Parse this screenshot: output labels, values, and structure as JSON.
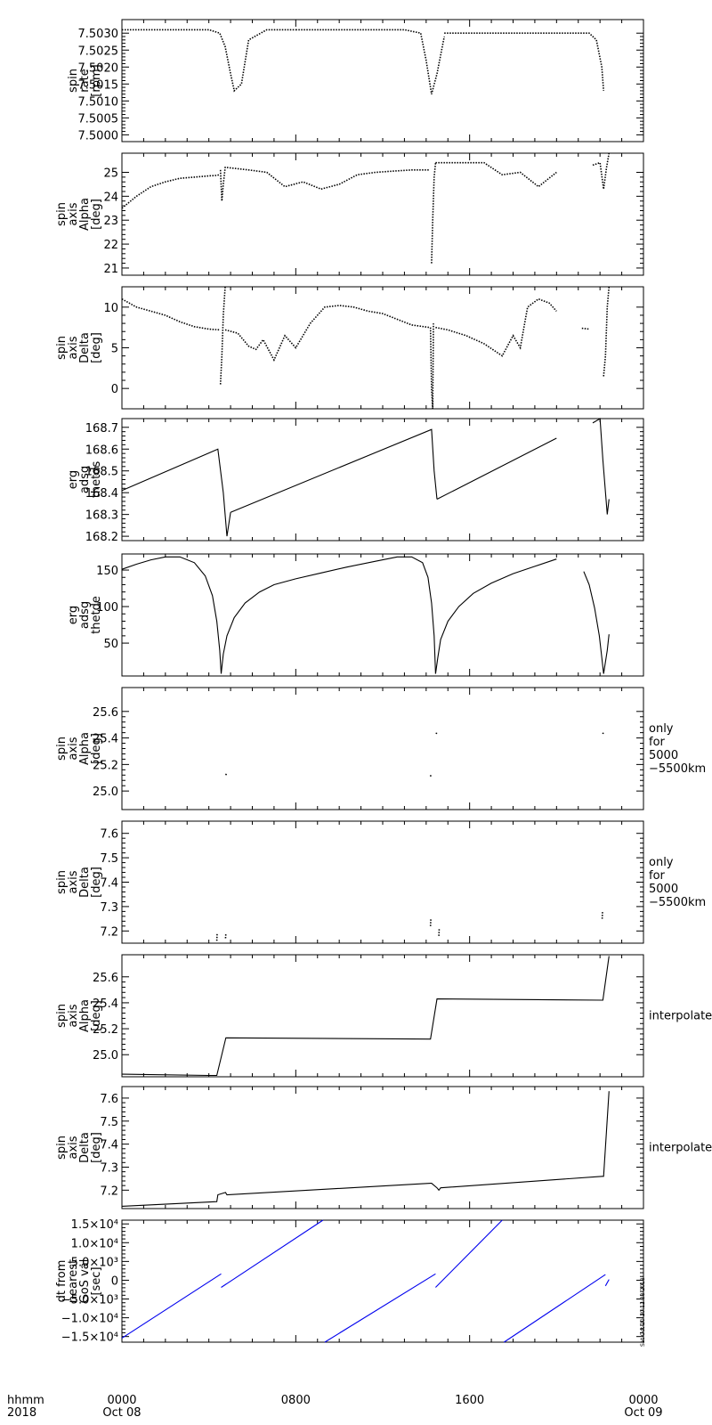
{
  "chart_data": [
    {
      "type": "scatter",
      "ylabel_lines": [
        "spin",
        "rate",
        "[rpm]"
      ],
      "ylim": [
        7.4998,
        7.5034
      ],
      "yticks": [
        7.5,
        7.5005,
        7.501,
        7.5015,
        7.502,
        7.5025,
        7.503
      ],
      "ytick_labels": [
        "7.5000",
        "7.5005",
        "7.5010",
        "7.5015",
        "7.5020",
        "7.5025",
        "7.5030"
      ],
      "side_label_lines": [],
      "color": "#000000",
      "segments": [
        {
          "x": [
            0,
            60,
            120,
            180,
            240,
            270,
            285,
            300,
            310,
            330,
            350,
            400,
            450,
            480
          ],
          "y": [
            7.5031,
            7.5031,
            7.5031,
            7.5031,
            7.5031,
            7.503,
            7.5026,
            7.5018,
            7.5013,
            7.5015,
            7.5028,
            7.5031,
            7.5031,
            7.5031
          ]
        },
        {
          "x": [
            480,
            600,
            700,
            780,
            825,
            840,
            855,
            870,
            890
          ],
          "y": [
            7.5031,
            7.5031,
            7.5031,
            7.5031,
            7.503,
            7.5022,
            7.5012,
            7.5018,
            7.5029
          ]
        },
        {
          "x": [
            890,
            1000,
            1100,
            1200,
            1290,
            1310,
            1325,
            1330
          ],
          "y": [
            7.503,
            7.503,
            7.503,
            7.503,
            7.503,
            7.5028,
            7.502,
            7.5013
          ]
        }
      ]
    },
    {
      "type": "scatter",
      "ylabel_lines": [
        "spin",
        "axis",
        "Alpha",
        "[deg]"
      ],
      "ylim": [
        20.7,
        25.8
      ],
      "yticks": [
        21,
        22,
        23,
        24,
        25
      ],
      "ytick_labels": [
        "21",
        "22",
        "23",
        "24",
        "25"
      ],
      "side_label_lines": [],
      "color": "#000000",
      "segments": [
        {
          "x": [
            0,
            40,
            80,
            120,
            160,
            200,
            240,
            260,
            270
          ],
          "y": [
            23.5,
            24.0,
            24.4,
            24.6,
            24.75,
            24.8,
            24.85,
            24.87,
            24.9
          ]
        },
        {
          "x": [
            272,
            276,
            280,
            285,
            290
          ],
          "y": [
            25.1,
            23.8,
            24.5,
            25.2,
            25.2
          ]
        },
        {
          "x": [
            290,
            350,
            400,
            450,
            500,
            550,
            600,
            650,
            700,
            750,
            800,
            850
          ],
          "y": [
            25.2,
            25.1,
            25.0,
            24.4,
            24.6,
            24.3,
            24.5,
            24.9,
            25.0,
            25.05,
            25.1,
            25.1
          ]
        },
        {
          "x": [
            855,
            858,
            862,
            866
          ],
          "y": [
            21.2,
            23.0,
            24.8,
            25.4
          ]
        },
        {
          "x": [
            866,
            950,
            1000,
            1050,
            1100,
            1150,
            1200
          ],
          "y": [
            25.4,
            25.4,
            25.4,
            24.9,
            25.0,
            24.4,
            25.0
          ]
        },
        {
          "x": [
            1300,
            1320,
            1330,
            1338,
            1345
          ],
          "y": [
            25.3,
            25.4,
            24.3,
            25.2,
            25.8
          ]
        }
      ]
    },
    {
      "type": "scatter",
      "ylabel_lines": [
        "spin",
        "axis",
        "Delta",
        "[deg]"
      ],
      "ylim": [
        -2.5,
        12.5
      ],
      "yticks": [
        0,
        5,
        10
      ],
      "ytick_labels": [
        "0",
        "5",
        "10"
      ],
      "side_label_lines": [],
      "color": "#000000",
      "segments": [
        {
          "x": [
            0,
            40,
            80,
            120,
            160,
            200,
            240,
            270
          ],
          "y": [
            11,
            10,
            9.5,
            9,
            8.2,
            7.6,
            7.3,
            7.2
          ]
        },
        {
          "x": [
            272,
            276,
            280,
            285
          ],
          "y": [
            0.5,
            4,
            9,
            12.5
          ]
        },
        {
          "x": [
            285,
            320,
            350,
            370,
            390,
            420,
            450,
            480,
            520,
            560,
            600,
            640,
            680,
            720,
            760,
            800,
            850
          ],
          "y": [
            7.2,
            6.8,
            5.2,
            4.8,
            6.0,
            3.5,
            6.5,
            5.0,
            8.0,
            10.0,
            10.2,
            10.0,
            9.5,
            9.2,
            8.5,
            7.8,
            7.5
          ]
        },
        {
          "x": [
            852,
            855,
            858,
            860
          ],
          "y": [
            7.5,
            0,
            -2.5,
            8
          ]
        },
        {
          "x": [
            866,
            900,
            950,
            1000,
            1050,
            1080,
            1100,
            1120,
            1150,
            1180,
            1200
          ],
          "y": [
            7.5,
            7.2,
            6.5,
            5.5,
            4.0,
            6.5,
            5.0,
            10.0,
            11.0,
            10.5,
            9.5
          ]
        },
        {
          "x": [
            1270,
            1290
          ],
          "y": [
            7.4,
            7.3
          ]
        },
        {
          "x": [
            1330,
            1335,
            1340,
            1345
          ],
          "y": [
            1.5,
            4.0,
            10.0,
            12.5
          ]
        }
      ]
    },
    {
      "type": "line",
      "ylabel_lines": [
        "erg",
        "adsg",
        "thetds"
      ],
      "ylim": [
        168.18,
        168.74
      ],
      "yticks": [
        168.2,
        168.3,
        168.4,
        168.5,
        168.6,
        168.7
      ],
      "ytick_labels": [
        "168.2",
        "168.3",
        "168.4",
        "168.5",
        "168.6",
        "168.7"
      ],
      "side_label_lines": [],
      "color": "#000000",
      "segments": [
        {
          "x": [
            0,
            265,
            280,
            290,
            300
          ],
          "y": [
            168.41,
            168.6,
            168.4,
            168.2,
            168.31
          ]
        },
        {
          "x": [
            300,
            855,
            862,
            870
          ],
          "y": [
            168.31,
            168.69,
            168.5,
            168.37
          ]
        },
        {
          "x": [
            870,
            1200
          ],
          "y": [
            168.37,
            168.65
          ]
        },
        {
          "x": [
            1300,
            1320,
            1328,
            1340,
            1345
          ],
          "y": [
            168.72,
            168.74,
            168.55,
            168.3,
            168.37
          ]
        }
      ]
    },
    {
      "type": "line",
      "ylabel_lines": [
        "erg",
        "adsg",
        "thetde"
      ],
      "ylim": [
        5,
        172
      ],
      "yticks": [
        50,
        100,
        150
      ],
      "ytick_labels": [
        "50",
        "100",
        "150"
      ],
      "side_label_lines": [],
      "color": "#000000",
      "segments": [
        {
          "x": [
            0,
            40,
            80,
            120,
            160,
            200,
            230,
            250,
            262,
            270,
            274
          ],
          "y": [
            151,
            158,
            164,
            168,
            168,
            160,
            142,
            115,
            80,
            40,
            8
          ]
        },
        {
          "x": [
            274,
            280,
            290,
            310,
            340,
            380,
            420,
            480,
            550,
            620,
            700,
            760,
            800,
            830,
            845,
            855,
            862,
            866
          ],
          "y": [
            8,
            35,
            60,
            85,
            105,
            120,
            130,
            138,
            146,
            154,
            162,
            168,
            168,
            160,
            140,
            105,
            60,
            8
          ]
        },
        {
          "x": [
            866,
            872,
            880,
            900,
            930,
            970,
            1020,
            1080,
            1140,
            1200
          ],
          "y": [
            8,
            30,
            55,
            80,
            100,
            118,
            132,
            145,
            155,
            165
          ]
        },
        {
          "x": [
            1275,
            1290,
            1305,
            1318,
            1325,
            1330,
            1340,
            1345
          ],
          "y": [
            148,
            130,
            98,
            60,
            30,
            8,
            40,
            62
          ]
        }
      ]
    },
    {
      "type": "scatter",
      "ylabel_lines": [
        "spin",
        "axis",
        "Alpha",
        "[deg]"
      ],
      "ylim": [
        24.86,
        25.78
      ],
      "yticks": [
        25.0,
        25.2,
        25.4,
        25.6
      ],
      "ytick_labels": [
        "25.0",
        "25.2",
        "25.4",
        "25.6"
      ],
      "side_label_lines": [
        "only",
        "for",
        "5000",
        "−5500km"
      ],
      "color": "#000000",
      "segments": [
        {
          "x": [
            287,
            288
          ],
          "y": [
            25.12,
            25.13
          ]
        },
        {
          "x": [
            852,
            853
          ],
          "y": [
            25.11,
            25.12
          ]
        },
        {
          "x": [
            868,
            869
          ],
          "y": [
            25.43,
            25.44
          ]
        },
        {
          "x": [
            1328,
            1329
          ],
          "y": [
            25.43,
            25.44
          ]
        }
      ]
    },
    {
      "type": "scatter",
      "ylabel_lines": [
        "spin",
        "axis",
        "Delta",
        "[deg]"
      ],
      "ylim": [
        7.15,
        7.65
      ],
      "yticks": [
        7.2,
        7.3,
        7.4,
        7.5,
        7.6
      ],
      "ytick_labels": [
        "7.2",
        "7.3",
        "7.4",
        "7.5",
        "7.6"
      ],
      "side_label_lines": [
        "only",
        "for",
        "5000",
        "−5500km"
      ],
      "color": "#000000",
      "segments": [
        {
          "x": [
            262,
            263
          ],
          "y": [
            7.16,
            7.19
          ]
        },
        {
          "x": [
            286,
            287
          ],
          "y": [
            7.17,
            7.19
          ]
        },
        {
          "x": [
            852,
            853
          ],
          "y": [
            7.22,
            7.25
          ]
        },
        {
          "x": [
            875,
            876
          ],
          "y": [
            7.18,
            7.21
          ]
        },
        {
          "x": [
            1326,
            1327
          ],
          "y": [
            7.25,
            7.28
          ]
        }
      ]
    },
    {
      "type": "line",
      "ylabel_lines": [
        "spin",
        "axis",
        "Alpha",
        "[deg]"
      ],
      "ylim": [
        24.83,
        25.77
      ],
      "yticks": [
        25.0,
        25.2,
        25.4,
        25.6
      ],
      "ytick_labels": [
        "25.0",
        "25.2",
        "25.4",
        "25.6"
      ],
      "side_label_lines": [
        "interpolated"
      ],
      "color": "#000000",
      "segments": [
        {
          "x": [
            0,
            240,
            262,
            287,
            852,
            870,
            1328,
            1345
          ],
          "y": [
            24.85,
            24.84,
            24.84,
            25.13,
            25.12,
            25.43,
            25.42,
            25.76
          ]
        }
      ]
    },
    {
      "type": "line",
      "ylabel_lines": [
        "spin",
        "axis",
        "Delta",
        "[deg]"
      ],
      "ylim": [
        7.12,
        7.65
      ],
      "yticks": [
        7.2,
        7.3,
        7.4,
        7.5,
        7.6
      ],
      "ytick_labels": [
        "7.2",
        "7.3",
        "7.4",
        "7.5",
        "7.6"
      ],
      "side_label_lines": [
        "interpolated"
      ],
      "color": "#000000",
      "segments": [
        {
          "x": [
            0,
            262,
            265,
            286,
            290,
            852,
            855,
            870,
            875,
            880,
            1326,
            1330,
            1345
          ],
          "y": [
            7.13,
            7.15,
            7.18,
            7.19,
            7.18,
            7.23,
            7.23,
            7.21,
            7.2,
            7.21,
            7.26,
            7.26,
            7.63
          ]
        }
      ]
    },
    {
      "type": "line",
      "ylabel_lines": [
        "dt from",
        "nearest",
        "GoS val",
        "[sec]"
      ],
      "ylim": [
        -16500,
        16000
      ],
      "yticks": [
        -15000,
        -10000,
        -5000,
        0,
        5000,
        10000,
        15000
      ],
      "ytick_labels": [
        "−1.5×10⁴",
        "−1.0×10⁴",
        "−5.0×10³",
        "0",
        "5.0×10³",
        "1.0×10⁴",
        "1.5×10⁴"
      ],
      "side_label_lines": [],
      "color": "#0000ee",
      "segments": [
        {
          "x": [
            0,
            274
          ],
          "y": [
            -15400,
            1700
          ]
        },
        {
          "x": [
            274,
            555
          ],
          "y": [
            -1900,
            16000
          ]
        },
        {
          "x": [
            560,
            866
          ],
          "y": [
            -16500,
            1700
          ]
        },
        {
          "x": [
            866,
            1050
          ],
          "y": [
            -1900,
            16000
          ]
        },
        {
          "x": [
            1055,
            1335
          ],
          "y": [
            -16500,
            1500
          ]
        },
        {
          "x": [
            1335,
            1345
          ],
          "y": [
            -1500,
            200
          ]
        }
      ]
    }
  ],
  "x_axis": {
    "xlim": [
      0,
      1440
    ],
    "major_ticks": [
      0,
      480,
      960,
      1440
    ],
    "tick_labels_line1": [
      "0000",
      "0800",
      "1600",
      "0000"
    ],
    "tick_labels_line2": [
      "Oct 08",
      "",
      "",
      "Oct 09"
    ],
    "corner_label_line1": "hhmm",
    "corner_label_line2": "2018"
  },
  "footer_stamp": "Sat Oct 20 10:12:38 2018"
}
